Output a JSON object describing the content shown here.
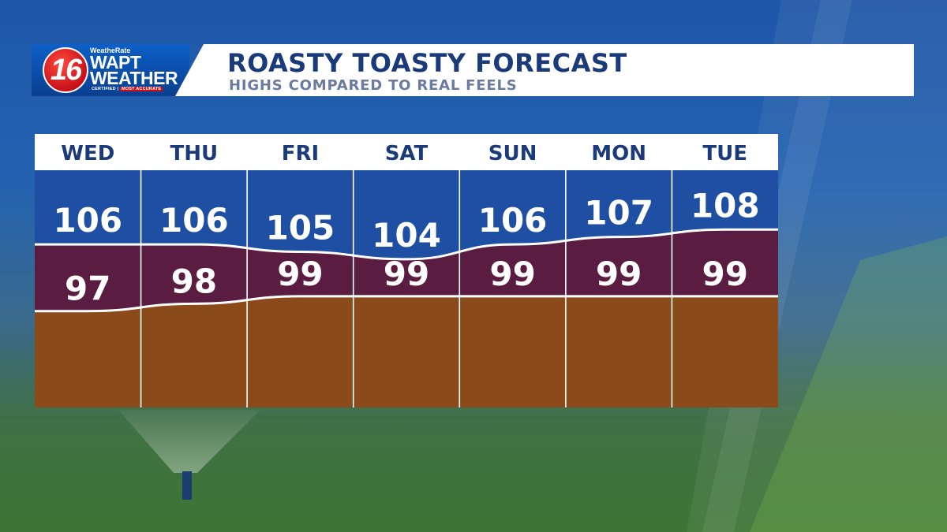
{
  "header": {
    "title": "ROASTY TOASTY FORECAST",
    "subtitle": "HIGHS COMPARED TO REAL FEELS"
  },
  "logo": {
    "channel_number": "16",
    "tagline_top": "WeatheRate",
    "station": "WAPT",
    "brand": "WEATHER",
    "certified": "CERTIFIED",
    "accuracy": "MOST ACCURATE"
  },
  "colors": {
    "banner_text": "#1a3a7a",
    "subtitle_text": "#6b7ba0",
    "day_header_bg": "#ffffff",
    "day_header_text": "#1a3a7a",
    "top_band": "#1e4fa3",
    "middle_band": "#5a1c40",
    "bottom_band": "#8a4a1a",
    "logo_red": "#c8101a",
    "logo_blue": "#0b4aa6"
  },
  "chart_data": {
    "type": "area",
    "categories": [
      "WED",
      "THU",
      "FRI",
      "SAT",
      "SUN",
      "MON",
      "TUE"
    ],
    "series": [
      {
        "values": [
          106,
          106,
          105,
          104,
          106,
          107,
          108
        ]
      },
      {
        "values": [
          97,
          98,
          99,
          99,
          99,
          99,
          99
        ]
      }
    ],
    "ylim": [
      84,
      116
    ],
    "grid": true,
    "legend": "none"
  }
}
